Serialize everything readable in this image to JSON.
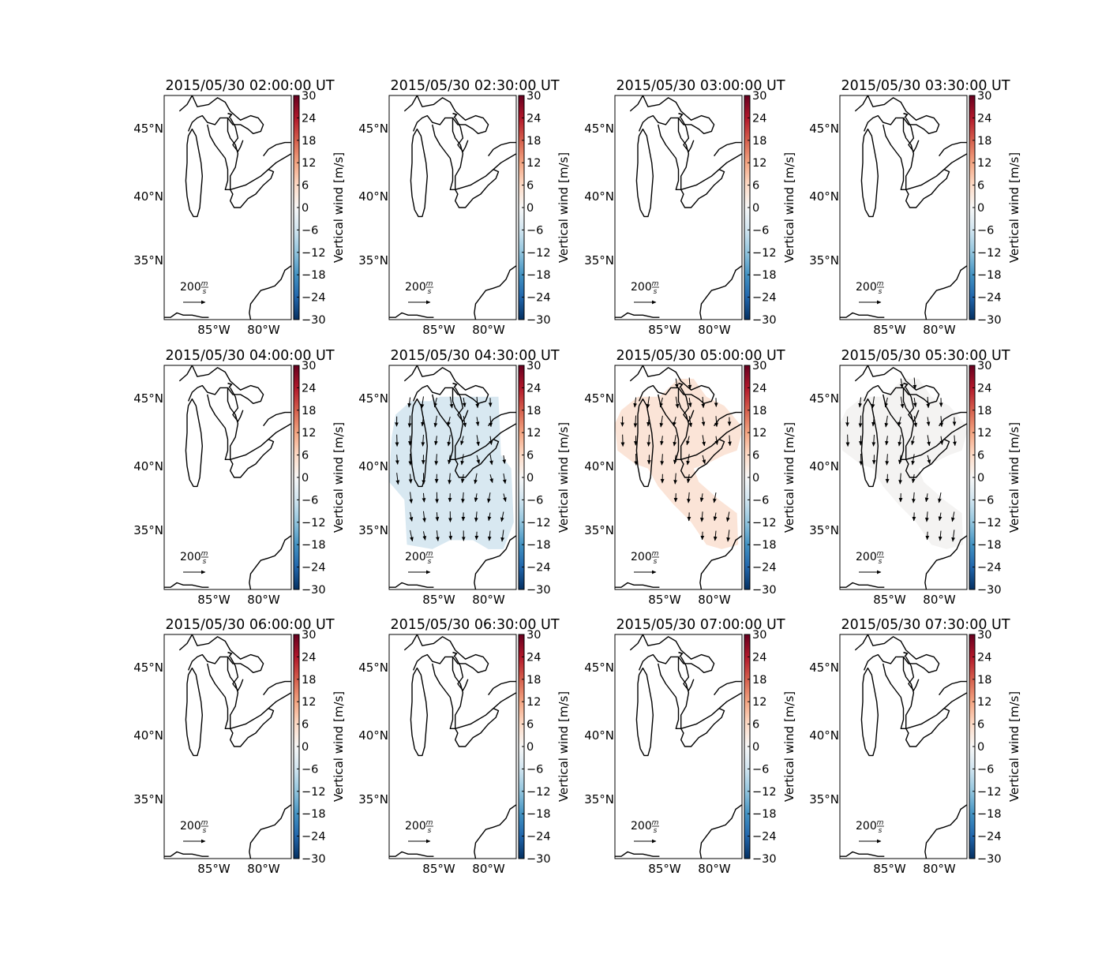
{
  "figure": {
    "lat_tick_labels": [
      "45°N",
      "40°N",
      "35°N"
    ],
    "lon_tick_labels": [
      "85°W",
      "80°W"
    ],
    "colorbar": {
      "label": "Vertical wind [m/s]",
      "min": -30,
      "max": 30,
      "ticks": [
        "30",
        "24",
        "18",
        "12",
        "6",
        "0",
        "−6",
        "−12",
        "−18",
        "−24",
        "−30"
      ],
      "colors_top_to_bottom": [
        "#67001f",
        "#b2182b",
        "#d6604d",
        "#f4a582",
        "#fddbc7",
        "#f7f7f7",
        "#d1e5f0",
        "#92c5de",
        "#4393c3",
        "#2166ac",
        "#053061"
      ]
    },
    "reference_arrow": {
      "value": "200",
      "unit_numerator": "m",
      "unit_denominator": "s"
    },
    "panels": [
      {
        "title": "2015/05/30 02:00:00 UT",
        "vertical_wind_ms": null
      },
      {
        "title": "2015/05/30 02:30:00 UT",
        "vertical_wind_ms": null
      },
      {
        "title": "2015/05/30 03:00:00 UT",
        "vertical_wind_ms": null
      },
      {
        "title": "2015/05/30 03:30:00 UT",
        "vertical_wind_ms": null
      },
      {
        "title": "2015/05/30 04:00:00 UT",
        "vertical_wind_ms": null
      },
      {
        "title": "2015/05/30 04:30:00 UT",
        "vertical_wind_ms": -3,
        "fill": "#d8e8f1",
        "region": "wide",
        "vectors": "south"
      },
      {
        "title": "2015/05/30 05:00:00 UT",
        "vertical_wind_ms": 3,
        "fill": "#fbe4d7",
        "region": "band",
        "vectors": "south"
      },
      {
        "title": "2015/05/30 05:30:00 UT",
        "vertical_wind_ms": 0.5,
        "fill": "#f4f3f2",
        "region": "band",
        "vectors": "south"
      },
      {
        "title": "2015/05/30 06:00:00 UT",
        "vertical_wind_ms": null
      },
      {
        "title": "2015/05/30 06:30:00 UT",
        "vertical_wind_ms": null
      },
      {
        "title": "2015/05/30 07:00:00 UT",
        "vertical_wind_ms": null
      },
      {
        "title": "2015/05/30 07:30:00 UT",
        "vertical_wind_ms": null
      }
    ]
  }
}
